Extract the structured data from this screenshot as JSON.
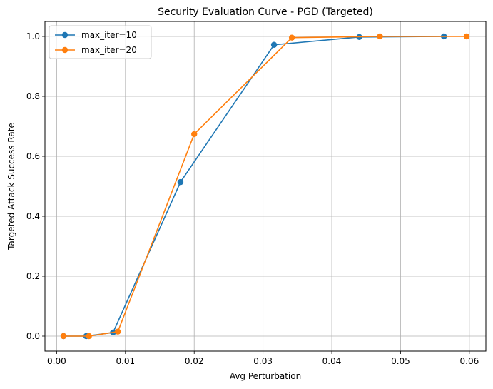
{
  "chart_data": {
    "type": "line",
    "title": "Security Evaluation Curve - PGD (Targeted)",
    "xlabel": "Avg Perturbation",
    "ylabel": "Targeted Attack Success Rate",
    "xlim": [
      -0.0017,
      0.0624
    ],
    "ylim": [
      -0.05,
      1.05
    ],
    "xticks": [
      0.0,
      0.01,
      0.02,
      0.03,
      0.04,
      0.05,
      0.06
    ],
    "xtick_labels": [
      "0.00",
      "0.01",
      "0.02",
      "0.03",
      "0.04",
      "0.05",
      "0.06"
    ],
    "yticks": [
      0.0,
      0.2,
      0.4,
      0.6,
      0.8,
      1.0
    ],
    "ytick_labels": [
      "0.0",
      "0.2",
      "0.4",
      "0.6",
      "0.8",
      "1.0"
    ],
    "grid": true,
    "legend_position": "top-left",
    "series": [
      {
        "name": "max_iter=10",
        "color": "#1f77b4",
        "marker": "circle",
        "x": [
          0.001,
          0.0043,
          0.0082,
          0.018,
          0.0316,
          0.044,
          0.0563
        ],
        "y": [
          0.0,
          0.0,
          0.012,
          0.514,
          0.972,
          0.998,
          1.0
        ]
      },
      {
        "name": "max_iter=20",
        "color": "#ff7f0e",
        "marker": "circle",
        "x": [
          0.001,
          0.0047,
          0.0089,
          0.02,
          0.0342,
          0.047,
          0.0596
        ],
        "y": [
          0.0,
          0.0,
          0.015,
          0.674,
          0.996,
          1.0,
          1.0
        ]
      }
    ]
  }
}
